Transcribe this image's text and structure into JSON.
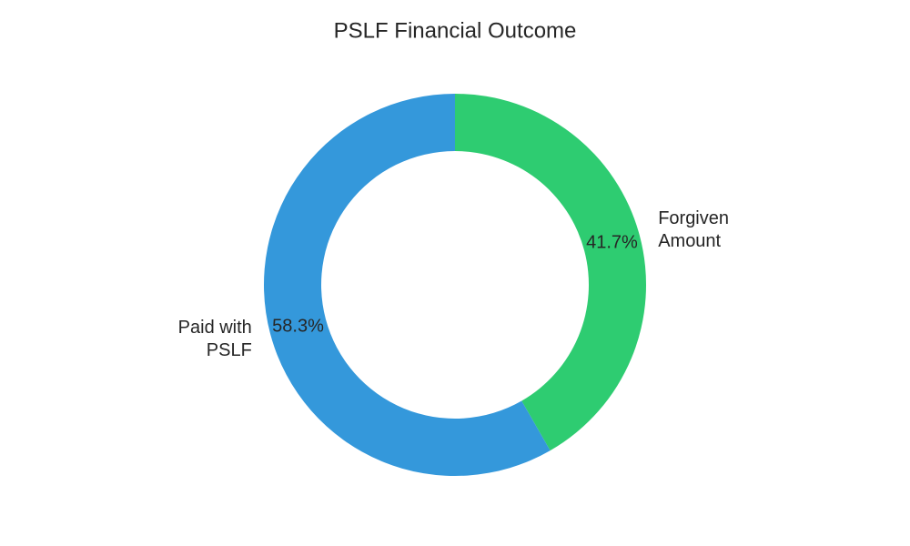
{
  "chart_data": {
    "type": "pie",
    "title": "PSLF Financial Outcome",
    "categories": [
      "Forgiven\nAmount",
      "Paid with\nPSLF"
    ],
    "values": [
      41.7,
      58.3
    ],
    "value_labels": [
      "41.7%",
      "58.3%"
    ],
    "colors": [
      "#2ecc71",
      "#3498db"
    ],
    "donut": true
  }
}
